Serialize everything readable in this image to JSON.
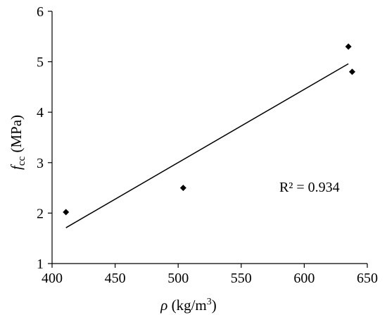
{
  "chart_data": {
    "type": "scatter",
    "title": "",
    "xlabel": {
      "symbol": "ρ",
      "unit_open": " (kg/m",
      "unit_sup": "3",
      "unit_close": ")"
    },
    "ylabel": {
      "symbol": "f",
      "subscript": "cc",
      "unit": " (MPa)"
    },
    "xlim": [
      400,
      650
    ],
    "ylim": [
      1,
      6
    ],
    "x_ticks": [
      400,
      450,
      500,
      550,
      600,
      650
    ],
    "y_ticks": [
      1,
      2,
      3,
      4,
      5,
      6
    ],
    "points": [
      {
        "x": 411,
        "y": 2.02
      },
      {
        "x": 504,
        "y": 2.5
      },
      {
        "x": 635,
        "y": 5.3
      },
      {
        "x": 638,
        "y": 4.8
      }
    ],
    "trendline": {
      "x": [
        411,
        635
      ],
      "y": [
        1.71,
        4.96
      ]
    },
    "annotation": "R² = 0.934",
    "grid": false,
    "legend": "none",
    "colors": {
      "marker": "#000000",
      "line": "#000000",
      "axis": "#000000"
    }
  }
}
